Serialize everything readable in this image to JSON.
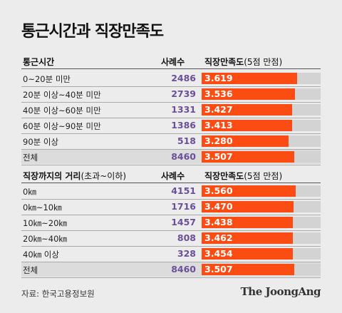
{
  "title": "통근시간과 직장만족도",
  "source": "자료: 한국고용정보원",
  "brand": "The JoongAng",
  "colors": {
    "bar": "#fb4c14",
    "track": "#d3d3d3",
    "count": "#6a4f9a"
  },
  "sections": [
    {
      "label_header": "통근시간",
      "label_header_sub": "",
      "count_header": "사례수",
      "score_header": "직장만족도",
      "score_header_sub": "(5점 만점)"
    },
    {
      "label_header": "직장까지의 거리",
      "label_header_sub": "(초과~이하)",
      "count_header": "사례수",
      "score_header": "직장만족도",
      "score_header_sub": "(5점 만점)"
    }
  ],
  "chart_data": [
    {
      "type": "bar",
      "title": "통근시간",
      "categories": [
        "0~20분 미만",
        "20분 이상~40분 미만",
        "40분 이상~60분 미만",
        "60분 이상~90분 미만",
        "90분 이상",
        "전체"
      ],
      "counts": [
        "2486",
        "2739",
        "1331",
        "1386",
        "518",
        "8460"
      ],
      "value_labels": [
        "3.619",
        "3.536",
        "3.427",
        "3.413",
        "3.280",
        "3.507"
      ],
      "values": [
        3.619,
        3.536,
        3.427,
        3.413,
        3.28,
        3.507
      ],
      "xlim": [
        0,
        4.5
      ],
      "orientation": "horizontal"
    },
    {
      "type": "bar",
      "title": "직장까지의 거리",
      "categories": [
        "0㎞",
        "0㎞~10㎞",
        "10㎞~20㎞",
        "20㎞~40㎞",
        "40㎞ 이상",
        "전체"
      ],
      "counts": [
        "4151",
        "1716",
        "1457",
        "808",
        "328",
        "8460"
      ],
      "value_labels": [
        "3.560",
        "3.470",
        "3.438",
        "3.462",
        "3.454",
        "3.507"
      ],
      "values": [
        3.56,
        3.47,
        3.438,
        3.462,
        3.454,
        3.507
      ],
      "xlim": [
        0,
        4.5
      ],
      "orientation": "horizontal"
    }
  ]
}
